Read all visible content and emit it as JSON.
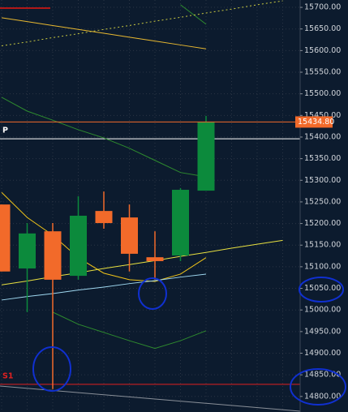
{
  "chart_data": {
    "type": "candlestick",
    "open": [
      15244,
      15096,
      15182,
      15079,
      15229,
      15214,
      15122,
      15126,
      15276,
      null,
      null,
      null
    ],
    "high": [
      15244,
      15201,
      15201,
      15263,
      15274,
      15244,
      15182,
      15282,
      15449,
      null,
      null,
      null
    ],
    "low": [
      15089,
      14995,
      14817,
      15070,
      15188,
      15089,
      15070,
      15113,
      15276,
      null,
      null,
      null
    ],
    "close": [
      15089,
      15177,
      15070,
      15218,
      15201,
      15130,
      15113,
      15278,
      15434.8,
      null,
      null,
      null
    ],
    "up_color": "#0c8a3c",
    "down_color": "#f26a2a",
    "lines": [
      {
        "color": "#f0c419",
        "dashed": false,
        "values": [
          15272,
          15214,
          15173,
          15121,
          15085,
          15070,
          15066,
          15083,
          15121,
          null,
          null,
          null
        ]
      },
      {
        "color": "#2e8b2e",
        "dashed": false,
        "values": [
          15492,
          15460,
          15439,
          15417,
          15398,
          15374,
          15346,
          15318,
          15308,
          null,
          null,
          null
        ]
      },
      {
        "color": "#2e8b2e",
        "dashed": false,
        "values": [
          null,
          null,
          14995,
          14967,
          14948,
          14929,
          14911,
          14929,
          14952,
          null,
          null,
          null
        ]
      },
      {
        "color": "#2e8b2e",
        "dashed": false,
        "values": [
          null,
          null,
          null,
          null,
          null,
          null,
          null,
          15706,
          15661,
          null,
          null,
          null
        ]
      },
      {
        "color": "#9fd8f0",
        "dashed": false,
        "values": [
          15023,
          15031,
          15038,
          15046,
          15053,
          15061,
          15068,
          15076,
          15083,
          null,
          null,
          null
        ]
      },
      {
        "color": "#e8e040",
        "dashed": false,
        "values": [
          15058,
          15067,
          15077,
          15086,
          15096,
          15105,
          15114,
          15124,
          15133,
          15143,
          15152,
          15161
        ]
      },
      {
        "color": "#e8b830",
        "dashed": false,
        "values": [
          15676,
          15667,
          15658,
          15649,
          15640,
          15631,
          15622,
          15613,
          15604,
          null,
          null,
          null
        ]
      },
      {
        "color": "#c8c840",
        "dashed": true,
        "values": [
          15611,
          15620,
          15630,
          15639,
          15649,
          15658,
          15668,
          15677,
          15687,
          15696,
          15706,
          15715
        ]
      }
    ],
    "levels": [
      {
        "label": "P",
        "value": 15396,
        "color": "#ffffff"
      },
      {
        "label": "S1",
        "value": 14828,
        "color": "#e02020"
      }
    ],
    "last_price": {
      "value": 15434.8,
      "label": "15434.80",
      "color": "#f26a2a"
    },
    "ylim": [
      14764,
      15717
    ],
    "yticks": [
      {
        "value": 14800,
        "label": "14800.00"
      },
      {
        "value": 14850,
        "label": "14850.00"
      },
      {
        "value": 14900,
        "label": "14900.00"
      },
      {
        "value": 14950,
        "label": "14950.00"
      },
      {
        "value": 15000,
        "label": "15000.00"
      },
      {
        "value": 15050,
        "label": "15050.00"
      },
      {
        "value": 15100,
        "label": "15100.00"
      },
      {
        "value": 15150,
        "label": "15150.00"
      },
      {
        "value": 15200,
        "label": "15200.00"
      },
      {
        "value": 15250,
        "label": "15250.00"
      },
      {
        "value": 15300,
        "label": "15300.00"
      },
      {
        "value": 15350,
        "label": "15350.00"
      },
      {
        "value": 15400,
        "label": "15400.00"
      },
      {
        "value": 15450,
        "label": "15450.00"
      },
      {
        "value": 15500,
        "label": "15500.00"
      },
      {
        "value": 15550,
        "label": "15550.00"
      },
      {
        "value": 15600,
        "label": "15600.00"
      },
      {
        "value": 15650,
        "label": "15650.00"
      },
      {
        "value": 15700,
        "label": "15700.00"
      }
    ],
    "grid": true
  }
}
